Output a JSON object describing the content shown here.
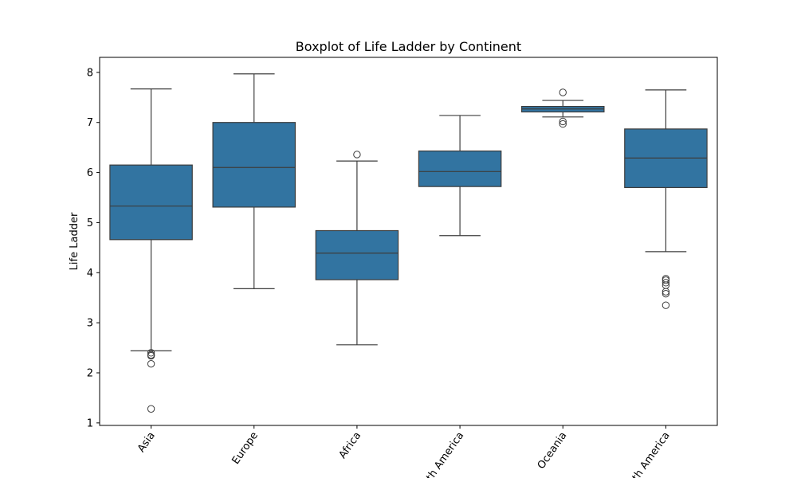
{
  "chart_data": {
    "type": "boxplot",
    "title": "Boxplot of Life Ladder by Continent",
    "xlabel": "",
    "ylabel": "Life Ladder",
    "ylim": [
      0.95,
      8.3
    ],
    "yticks": [
      "1",
      "2",
      "3",
      "4",
      "5",
      "6",
      "7",
      "8"
    ],
    "grid": false,
    "box_color": "#3274a1",
    "line_color": "#3d3d3d",
    "categories": [
      "Asia",
      "Europe",
      "Africa",
      "North America",
      "Oceania",
      "South America"
    ],
    "boxes": [
      {
        "category": "Asia",
        "whislo": 2.44,
        "q1": 4.66,
        "med": 5.33,
        "q3": 6.15,
        "whishi": 7.67,
        "fliers": [
          2.4,
          2.36,
          2.34,
          2.18,
          1.28
        ]
      },
      {
        "category": "Europe",
        "whislo": 3.68,
        "q1": 5.31,
        "med": 6.1,
        "q3": 7.0,
        "whishi": 7.97,
        "fliers": []
      },
      {
        "category": "Africa",
        "whislo": 2.56,
        "q1": 3.86,
        "med": 4.39,
        "q3": 4.84,
        "whishi": 6.23,
        "fliers": [
          6.36
        ]
      },
      {
        "category": "North America",
        "whislo": 4.74,
        "q1": 5.72,
        "med": 6.02,
        "q3": 6.43,
        "whishi": 7.14,
        "fliers": []
      },
      {
        "category": "Oceania",
        "whislo": 7.11,
        "q1": 7.21,
        "med": 7.27,
        "q3": 7.32,
        "whishi": 7.44,
        "fliers": [
          7.6,
          7.02,
          6.97
        ]
      },
      {
        "category": "South America",
        "whislo": 4.42,
        "q1": 5.7,
        "med": 6.29,
        "q3": 6.87,
        "whishi": 7.65,
        "fliers": [
          3.88,
          3.85,
          3.8,
          3.75,
          3.62,
          3.58,
          3.35
        ]
      }
    ]
  }
}
